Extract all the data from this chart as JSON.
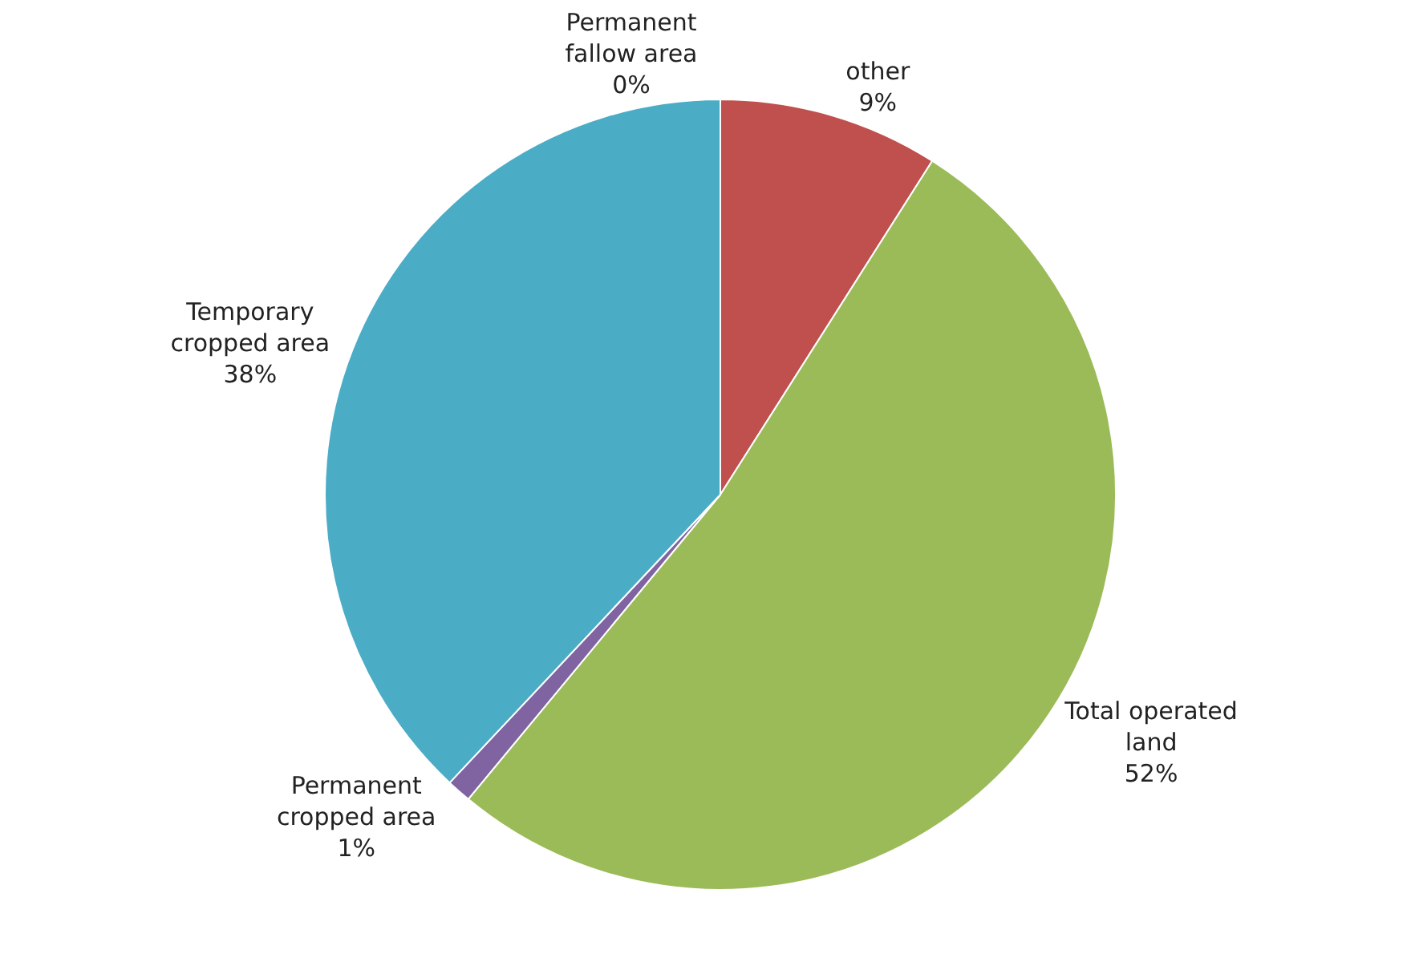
{
  "chart_data": {
    "type": "pie",
    "categories": [
      "other",
      "Total operated land",
      "Permanent cropped area",
      "Temporary cropped area",
      "Permanent fallow area"
    ],
    "values": [
      9,
      52,
      1,
      38,
      0
    ],
    "value_labels": [
      "9%",
      "52%",
      "1%",
      "38%",
      "0%"
    ],
    "colors": [
      "#c0504d",
      "#9bbb59",
      "#8064a2",
      "#4bacc6",
      "#f79646"
    ],
    "legend": false
  }
}
